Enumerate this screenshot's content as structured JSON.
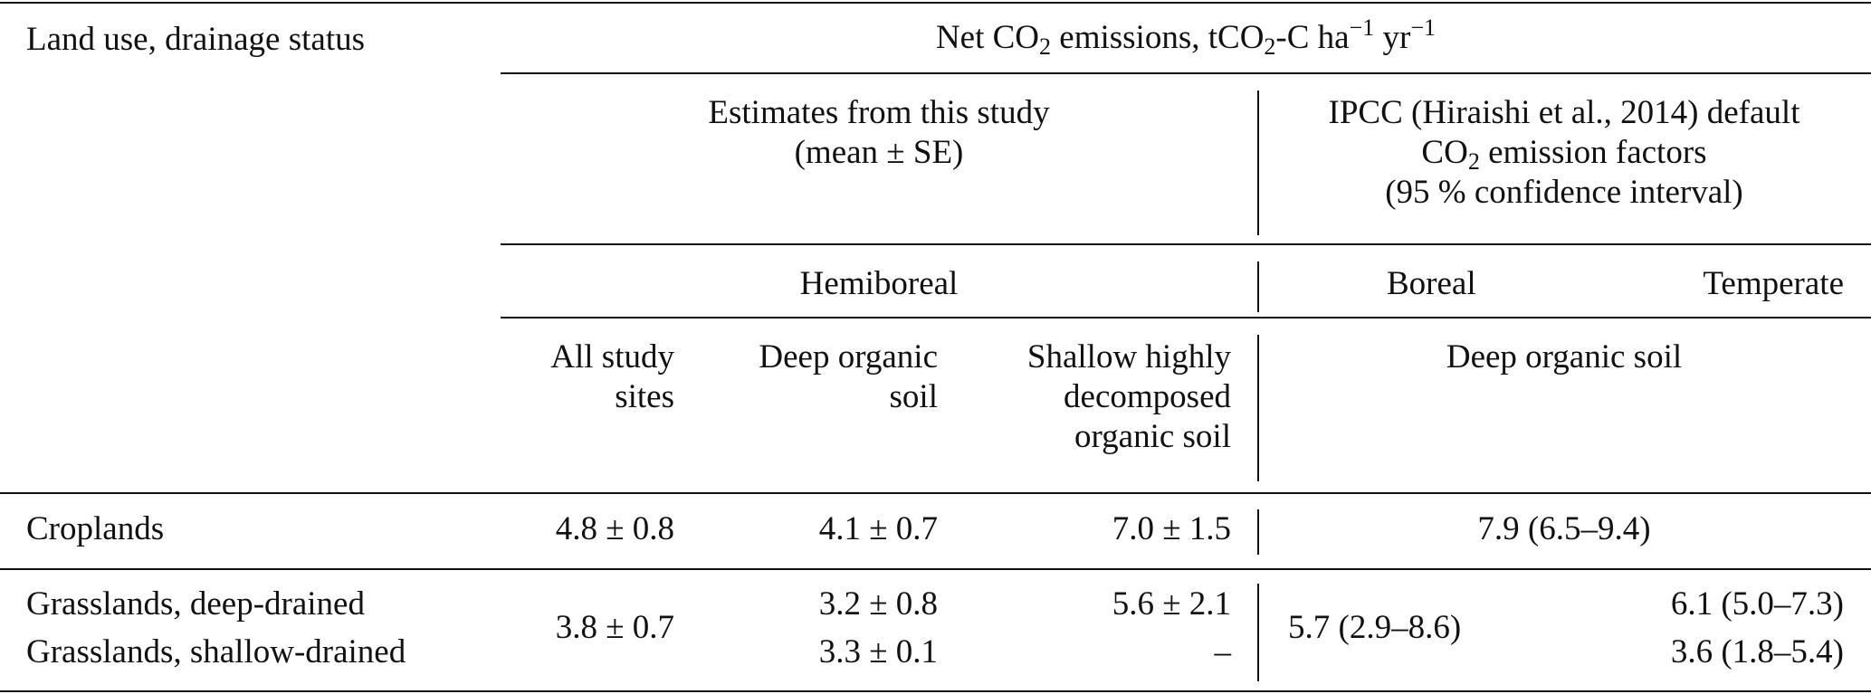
{
  "table": {
    "corner_header": "Land use, drainage status",
    "main_header": {
      "pre": "Net CO",
      "sub1": "2",
      "mid": " emissions, tCO",
      "sub2": "2",
      "mid2": "-C ha",
      "sup1": "−1",
      "mid3": " yr",
      "sup2": "−1"
    },
    "group_study": {
      "line1": "Estimates from this study",
      "line2": "(mean ± SE)"
    },
    "group_ipcc": {
      "line1": "IPCC (Hiraishi et al., 2014) default",
      "line2_pre": "CO",
      "line2_sub": "2",
      "line2_post": " emission factors",
      "line3": "(95 % confidence interval)"
    },
    "zone_hemiboreal": "Hemiboreal",
    "zone_boreal": "Boreal",
    "zone_temperate": "Temperate",
    "col_all": {
      "line1": "All study",
      "line2": "sites"
    },
    "col_deep": {
      "line1": "Deep organic",
      "line2": "soil"
    },
    "col_shallow": {
      "line1": "Shallow highly",
      "line2": "decomposed",
      "line3": "organic soil"
    },
    "col_ipcc_deep": "Deep organic soil",
    "rows": {
      "croplands": {
        "label": "Croplands",
        "all": "4.8 ± 0.8",
        "deep": "4.1 ± 0.7",
        "shallow": "7.0 ± 1.5",
        "ipcc": "7.9 (6.5–9.4)"
      },
      "grass_deep": {
        "label": "Grasslands, deep-drained",
        "deep": "3.2 ± 0.8",
        "shallow": "5.6 ± 2.1",
        "temperate": "6.1 (5.0–7.3)"
      },
      "grass_shallow": {
        "label": "Grasslands, shallow-drained",
        "deep": "3.3 ± 0.1",
        "shallow": "–",
        "temperate": "3.6 (1.8–5.4)"
      },
      "grass_all": "3.8 ± 0.7",
      "grass_boreal": "5.7 (2.9–8.6)"
    }
  }
}
